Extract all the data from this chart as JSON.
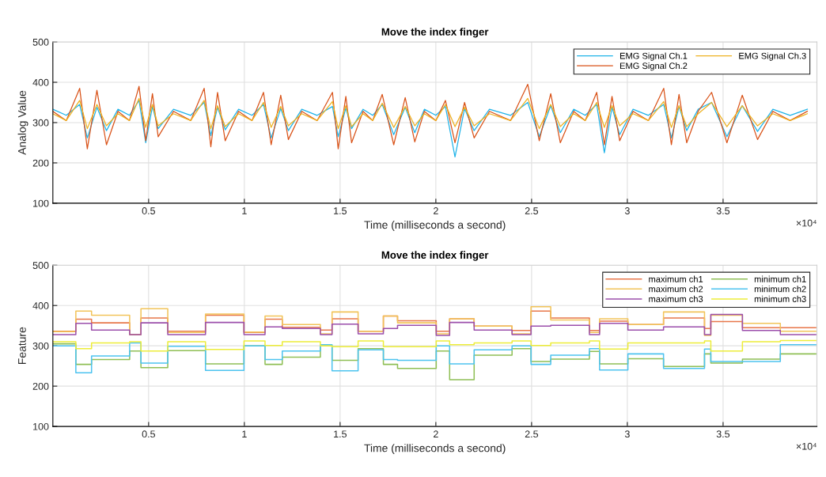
{
  "chart_data": [
    {
      "type": "line",
      "title": "Move the index finger",
      "xlabel": "Time (milliseconds a second)",
      "ylabel": "Analog Value",
      "annotations": [
        "×10⁴"
      ],
      "xlim": [
        0,
        3.99
      ],
      "ylim": [
        100,
        500
      ],
      "xticks": [
        0.5,
        1,
        1.5,
        2,
        2.5,
        3,
        3.5
      ],
      "yticks": [
        100,
        200,
        300,
        400,
        500
      ],
      "grid": true,
      "legend": "top right",
      "x": [
        0,
        0.07,
        0.14,
        0.18,
        0.23,
        0.28,
        0.34,
        0.4,
        0.45,
        0.485,
        0.52,
        0.55,
        0.63,
        0.72,
        0.79,
        0.825,
        0.86,
        0.9,
        0.97,
        1.04,
        1.1,
        1.14,
        1.19,
        1.23,
        1.3,
        1.38,
        1.46,
        1.49,
        1.53,
        1.56,
        1.62,
        1.67,
        1.72,
        1.78,
        1.84,
        1.89,
        1.94,
        2.0,
        2.05,
        2.1,
        2.15,
        2.2,
        2.28,
        2.39,
        2.48,
        2.54,
        2.6,
        2.65,
        2.72,
        2.78,
        2.84,
        2.88,
        2.92,
        2.96,
        3.03,
        3.11,
        3.19,
        3.23,
        3.27,
        3.31,
        3.37,
        3.44,
        3.52,
        3.6,
        3.68,
        3.76,
        3.85,
        3.94
      ],
      "series": [
        {
          "name": "EMG Signal Ch.1",
          "color": "#1fb3e8",
          "values": [
            333,
            318,
            345,
            262,
            338,
            280,
            333,
            318,
            355,
            250,
            340,
            285,
            333,
            318,
            350,
            268,
            338,
            282,
            333,
            318,
            345,
            262,
            335,
            280,
            333,
            318,
            340,
            265,
            336,
            285,
            333,
            318,
            345,
            270,
            338,
            275,
            333,
            318,
            340,
            215,
            335,
            280,
            333,
            318,
            350,
            265,
            342,
            275,
            333,
            318,
            345,
            225,
            338,
            270,
            333,
            318,
            345,
            262,
            340,
            280,
            333,
            350,
            265,
            342,
            278,
            333,
            318,
            333
          ]
        },
        {
          "name": "EMG Signal Ch.2",
          "color": "#d95319",
          "values": [
            328,
            305,
            385,
            235,
            380,
            245,
            328,
            305,
            390,
            255,
            372,
            265,
            328,
            305,
            385,
            240,
            375,
            255,
            328,
            305,
            375,
            245,
            368,
            258,
            328,
            305,
            375,
            235,
            365,
            250,
            328,
            305,
            370,
            245,
            362,
            252,
            328,
            305,
            355,
            250,
            350,
            262,
            328,
            305,
            395,
            255,
            372,
            250,
            328,
            305,
            375,
            245,
            365,
            255,
            328,
            305,
            385,
            245,
            370,
            250,
            328,
            375,
            250,
            368,
            258,
            328,
            305,
            328
          ]
        },
        {
          "name": "EMG Signal Ch.3",
          "color": "#edb120",
          "values": [
            322,
            305,
            355,
            285,
            345,
            292,
            322,
            305,
            360,
            288,
            345,
            292,
            322,
            305,
            355,
            285,
            342,
            290,
            322,
            305,
            350,
            288,
            340,
            292,
            322,
            305,
            352,
            285,
            342,
            290,
            322,
            305,
            348,
            288,
            340,
            292,
            322,
            305,
            345,
            290,
            338,
            292,
            322,
            305,
            360,
            285,
            345,
            290,
            322,
            305,
            350,
            288,
            342,
            292,
            322,
            305,
            352,
            288,
            342,
            290,
            322,
            350,
            290,
            342,
            292,
            322,
            305,
            322
          ]
        }
      ]
    },
    {
      "type": "step",
      "title": "Move the index finger",
      "xlabel": "Time (milliseconds a second)",
      "ylabel": "Feature",
      "annotations": [
        "×10⁴"
      ],
      "xlim": [
        0,
        3.99
      ],
      "ylim": [
        100,
        500
      ],
      "xticks": [
        0.5,
        1,
        1.5,
        2,
        2.5,
        3,
        3.5
      ],
      "yticks": [
        100,
        200,
        300,
        400,
        500
      ],
      "grid": true,
      "legend": "top right",
      "x": [
        0,
        0.12,
        0.202,
        0.401,
        0.46,
        0.6,
        0.797,
        0.998,
        1.108,
        1.198,
        1.397,
        1.458,
        1.594,
        1.726,
        1.8,
        2.002,
        2.072,
        2.2,
        2.398,
        2.497,
        2.6,
        2.802,
        2.855,
        3.003,
        3.189,
        3.403,
        3.436,
        3.601,
        3.799,
        3.984
      ],
      "series": [
        {
          "name": "maximum ch1",
          "color": "#e8774a",
          "values": [
            336,
            366,
            357,
            328,
            369,
            336,
            376,
            333,
            366,
            346,
            339,
            367,
            336,
            374,
            362,
            336,
            367,
            349,
            338,
            386,
            369,
            338,
            361,
            353,
            369,
            343,
            360,
            345,
            345,
            345
          ]
        },
        {
          "name": "maximum ch2",
          "color": "#f2c45a",
          "values": [
            335,
            386,
            376,
            328,
            392,
            333,
            379,
            334,
            374,
            353,
            330,
            384,
            336,
            374,
            357,
            330,
            367,
            349,
            330,
            397,
            364,
            333,
            367,
            353,
            384,
            326,
            376,
            356,
            336,
            336
          ]
        },
        {
          "name": "maximum ch3",
          "color": "#9b4fab",
          "values": [
            328,
            356,
            339,
            328,
            357,
            328,
            358,
            328,
            347,
            343,
            328,
            354,
            330,
            343,
            351,
            326,
            358,
            339,
            328,
            349,
            351,
            328,
            356,
            339,
            347,
            328,
            378,
            338,
            328,
            328
          ]
        },
        {
          "name": "minimum ch1",
          "color": "#8fbf55",
          "values": [
            305,
            254,
            266,
            287,
            246,
            288,
            255,
            300,
            254,
            272,
            300,
            264,
            293,
            254,
            244,
            287,
            216,
            277,
            293,
            261,
            267,
            286,
            255,
            268,
            249,
            280,
            257,
            267,
            280,
            280
          ]
        },
        {
          "name": "minimum ch2",
          "color": "#4dc3ef",
          "values": [
            300,
            233,
            275,
            307,
            257,
            299,
            239,
            300,
            266,
            287,
            303,
            238,
            290,
            266,
            264,
            300,
            255,
            290,
            300,
            254,
            277,
            293,
            240,
            280,
            244,
            292,
            261,
            261,
            303,
            303
          ]
        },
        {
          "name": "minimum ch3",
          "color": "#eded3a",
          "values": [
            310,
            293,
            307,
            310,
            287,
            310,
            291,
            312,
            301,
            310,
            300,
            298,
            312,
            298,
            298,
            312,
            303,
            307,
            312,
            301,
            307,
            312,
            292,
            307,
            307,
            312,
            287,
            310,
            313,
            313
          ]
        }
      ]
    }
  ]
}
